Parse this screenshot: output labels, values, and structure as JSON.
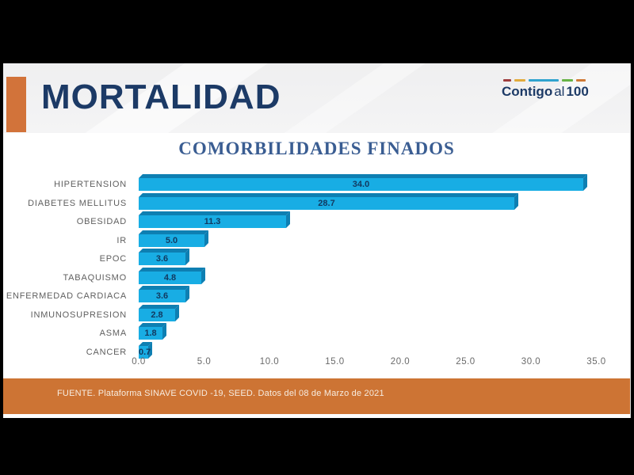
{
  "window": {
    "background": "#000000"
  },
  "header": {
    "title": "MORTALIDAD",
    "title_color": "#1c3a66",
    "accent_color": "#d2733a",
    "logo": {
      "word1": "Contigo",
      "word2": "al",
      "word3": "100",
      "dash_colors": [
        "#9e3d3d",
        "#e2ab3c",
        "#2fa3cf",
        "#67b346",
        "#d07a36"
      ],
      "dash_widths": [
        10,
        14,
        38,
        14,
        12
      ]
    }
  },
  "chart_data": {
    "type": "bar",
    "orientation": "horizontal",
    "title": "COMORBILIDADES FINADOS",
    "title_color": "#3a5d92",
    "categories": [
      "HIPERTENSION",
      "DIABETES MELLITUS",
      "OBESIDAD",
      "IR",
      "EPOC",
      "TABAQUISMO",
      "ENFERMEDAD CARDIACA",
      "INMUNOSUPRESION",
      "ASMA",
      "CANCER"
    ],
    "values": [
      34.0,
      28.7,
      11.3,
      5.0,
      3.6,
      4.8,
      3.6,
      2.8,
      1.8,
      0.7
    ],
    "value_labels": [
      "34.0",
      "28.7",
      "11.3",
      "5.0",
      "3.6",
      "4.8",
      "3.6",
      "2.8",
      "1.8",
      "0.7"
    ],
    "x_ticks": [
      "0.0",
      "5.0",
      "10.0",
      "15.0",
      "20.0",
      "25.0",
      "30.0",
      "35.0"
    ],
    "xlim": [
      0,
      35
    ],
    "grid": false,
    "legend": false,
    "effect": "3d",
    "bar_color": "#18ade4",
    "bar_shade_color": "#0e7fb2",
    "value_label_color": "#123a61",
    "category_label_color": "#5f5f5f",
    "axis_label_color": "#6a6a6a"
  },
  "footer": {
    "source": "FUENTE. Plataforma SINAVE COVID -19, SEED. Datos del 08 de Marzo de 2021",
    "bar_color": "#cd7434",
    "text_color": "#f7ece0"
  }
}
